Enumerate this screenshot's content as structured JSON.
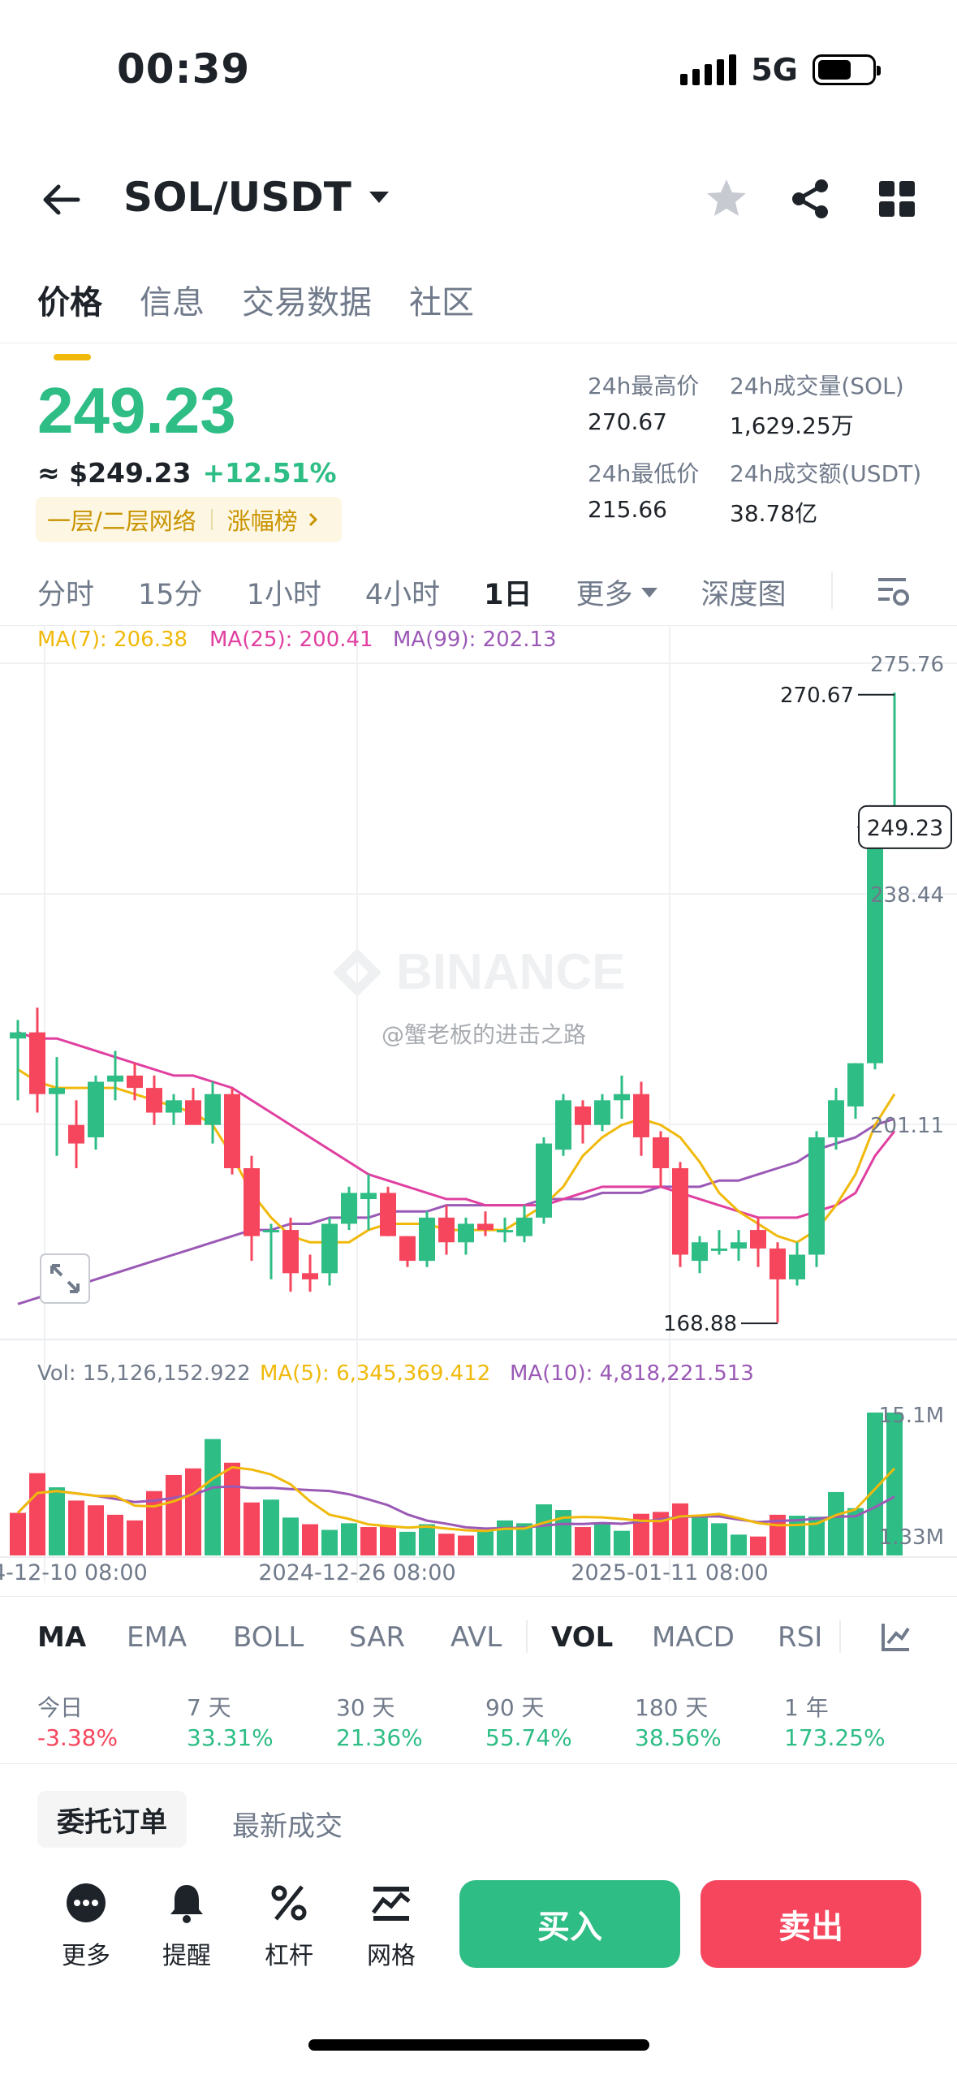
{
  "status": {
    "time": "00:39",
    "network": "5G"
  },
  "header": {
    "pair": "SOL/USDT"
  },
  "tabs": [
    "价格",
    "信息",
    "交易数据",
    "社区"
  ],
  "price": {
    "last": "249.23",
    "usd": "≈ $249.23",
    "change": "+12.51%",
    "tag1": "一层/二层网络",
    "tag2": "涨幅榜"
  },
  "stats": {
    "high_label": "24h最高价",
    "high": "270.67",
    "vol_sol_label": "24h成交量(SOL)",
    "vol_sol": "1,629.25万",
    "low_label": "24h最低价",
    "low": "215.66",
    "vol_usdt_label": "24h成交额(USDT)",
    "vol_usdt": "38.78亿"
  },
  "intervals": [
    "分时",
    "15分",
    "1小时",
    "4小时",
    "1日",
    "更多",
    "深度图"
  ],
  "chart_data": {
    "type": "candlestick",
    "ma_legend": {
      "ma7": "MA(7): 206.38",
      "ma25": "MA(25): 200.41",
      "ma99": "MA(99): 202.13"
    },
    "price_axis": [
      "275.76",
      "238.44",
      "201.11"
    ],
    "current_price": "249.23",
    "high_mark": "270.67",
    "low_mark": "168.88",
    "watermark": "BINANCE",
    "credit": "@蟹老板的进击之路",
    "vol_legend": {
      "vol": "Vol: 15,126,152.922",
      "ma5": "MA(5): 6,345,369.412",
      "ma10": "MA(10): 4,818,221.513"
    },
    "vol_axis": [
      "15.1M",
      "1.33M"
    ],
    "x_labels": [
      "4-12-10 08:00",
      "2024-12-26 08:00",
      "2025-01-11 08:00"
    ],
    "price_range": [
      166,
      278
    ],
    "candles": [
      {
        "o": 215,
        "h": 218,
        "l": 205,
        "c": 216
      },
      {
        "o": 216,
        "h": 220,
        "l": 203,
        "c": 206
      },
      {
        "o": 206,
        "h": 212,
        "l": 196,
        "c": 207
      },
      {
        "o": 201,
        "h": 205,
        "l": 194,
        "c": 198
      },
      {
        "o": 199,
        "h": 209,
        "l": 197,
        "c": 208
      },
      {
        "o": 208,
        "h": 213,
        "l": 205,
        "c": 209
      },
      {
        "o": 209,
        "h": 211,
        "l": 205,
        "c": 207
      },
      {
        "o": 207,
        "h": 209,
        "l": 201,
        "c": 203
      },
      {
        "o": 203,
        "h": 206,
        "l": 201,
        "c": 205
      },
      {
        "o": 205,
        "h": 207,
        "l": 202,
        "c": 201
      },
      {
        "o": 201,
        "h": 208,
        "l": 198,
        "c": 206
      },
      {
        "o": 206,
        "h": 207,
        "l": 193,
        "c": 194
      },
      {
        "o": 194,
        "h": 196,
        "l": 179,
        "c": 183
      },
      {
        "o": 184,
        "h": 185,
        "l": 176,
        "c": 184
      },
      {
        "o": 184,
        "h": 186,
        "l": 174,
        "c": 177
      },
      {
        "o": 177,
        "h": 180,
        "l": 174,
        "c": 176
      },
      {
        "o": 177,
        "h": 186,
        "l": 175,
        "c": 185
      },
      {
        "o": 185,
        "h": 191,
        "l": 184,
        "c": 190
      },
      {
        "o": 189,
        "h": 193,
        "l": 184,
        "c": 190
      },
      {
        "o": 190,
        "h": 191,
        "l": 183,
        "c": 183
      },
      {
        "o": 183,
        "h": 183,
        "l": 178,
        "c": 179
      },
      {
        "o": 179,
        "h": 187,
        "l": 178,
        "c": 186
      },
      {
        "o": 186,
        "h": 188,
        "l": 180,
        "c": 182
      },
      {
        "o": 182,
        "h": 186,
        "l": 180,
        "c": 185
      },
      {
        "o": 185,
        "h": 187,
        "l": 183,
        "c": 184
      },
      {
        "o": 184,
        "h": 186,
        "l": 182,
        "c": 184
      },
      {
        "o": 183,
        "h": 188,
        "l": 182,
        "c": 186
      },
      {
        "o": 186,
        "h": 199,
        "l": 185,
        "c": 198
      },
      {
        "o": 197,
        "h": 206,
        "l": 196,
        "c": 205
      },
      {
        "o": 204,
        "h": 205,
        "l": 198,
        "c": 201
      },
      {
        "o": 201,
        "h": 206,
        "l": 200,
        "c": 205
      },
      {
        "o": 205,
        "h": 209,
        "l": 202,
        "c": 206
      },
      {
        "o": 206,
        "h": 208,
        "l": 196,
        "c": 199
      },
      {
        "o": 199,
        "h": 200,
        "l": 191,
        "c": 194
      },
      {
        "o": 194,
        "h": 195,
        "l": 178,
        "c": 180
      },
      {
        "o": 179,
        "h": 183,
        "l": 177,
        "c": 182
      },
      {
        "o": 181,
        "h": 184,
        "l": 180,
        "c": 181
      },
      {
        "o": 181,
        "h": 184,
        "l": 179,
        "c": 182
      },
      {
        "o": 184,
        "h": 186,
        "l": 178,
        "c": 181
      },
      {
        "o": 181,
        "h": 182,
        "l": 169,
        "c": 176
      },
      {
        "o": 176,
        "h": 182,
        "l": 175,
        "c": 180
      },
      {
        "o": 180,
        "h": 200,
        "l": 178,
        "c": 199
      },
      {
        "o": 199,
        "h": 207,
        "l": 197,
        "c": 205
      },
      {
        "o": 204,
        "h": 211,
        "l": 202,
        "c": 211
      },
      {
        "o": 211,
        "h": 249,
        "l": 210,
        "c": 249
      },
      {
        "o": 249,
        "h": 271,
        "l": 248,
        "c": 249
      }
    ],
    "volumes": [
      4.5,
      8.7,
      7.2,
      5.8,
      5.3,
      4.3,
      3.7,
      6.8,
      8.5,
      9.2,
      12.3,
      9.8,
      5.6,
      5.9,
      4.0,
      3.3,
      2.7,
      3.4,
      3.0,
      3.1,
      2.5,
      3.3,
      2.3,
      2.1,
      2.7,
      3.7,
      3.4,
      5.4,
      4.8,
      3.0,
      3.5,
      2.6,
      4.4,
      4.6,
      5.5,
      4.0,
      3.4,
      2.2,
      2.0,
      4.3,
      4.2,
      4.1,
      6.7,
      5.0,
      15.1,
      15.1
    ],
    "vol_colors": [
      "r",
      "r",
      "g",
      "r",
      "r",
      "r",
      "r",
      "r",
      "r",
      "r",
      "g",
      "r",
      "r",
      "g",
      "g",
      "r",
      "g",
      "g",
      "r",
      "r",
      "g",
      "g",
      "r",
      "r",
      "g",
      "g",
      "g",
      "g",
      "g",
      "r",
      "g",
      "g",
      "r",
      "r",
      "r",
      "g",
      "g",
      "g",
      "r",
      "r",
      "g",
      "g",
      "g",
      "g",
      "g",
      "g"
    ],
    "ma7": [
      210,
      208,
      207,
      207,
      207,
      207,
      206,
      205,
      204,
      203,
      201,
      196,
      190,
      186,
      183,
      182,
      182,
      182,
      184,
      185,
      185,
      185,
      184,
      184,
      184,
      184,
      186,
      188,
      191,
      196,
      199,
      201,
      202,
      201,
      199,
      195,
      190,
      187,
      185,
      183,
      182,
      184,
      188,
      193,
      201,
      206
    ],
    "ma25": [
      216,
      215,
      215,
      214,
      213,
      212,
      211,
      210,
      209,
      209,
      208,
      207,
      205,
      203,
      201,
      199,
      197,
      195,
      193,
      192,
      191,
      190,
      189,
      189,
      188,
      188,
      188,
      188,
      189,
      190,
      191,
      191,
      191,
      191,
      190,
      189,
      188,
      187,
      186,
      186,
      186,
      187,
      188,
      190,
      196,
      200
    ],
    "ma99": [
      172,
      173,
      174,
      175,
      176,
      177,
      178,
      179,
      180,
      181,
      182,
      183,
      184,
      184,
      185,
      185,
      186,
      186,
      186,
      187,
      187,
      187,
      188,
      188,
      188,
      188,
      188,
      189,
      189,
      189,
      190,
      190,
      190,
      191,
      191,
      191,
      192,
      192,
      193,
      194,
      195,
      197,
      198,
      199,
      201,
      202
    ]
  },
  "indicators": [
    "MA",
    "EMA",
    "BOLL",
    "SAR",
    "AVL",
    "VOL",
    "MACD",
    "RSI"
  ],
  "performance": [
    {
      "label": "今日",
      "value": "-3.38%"
    },
    {
      "label": "7 天",
      "value": "33.31%"
    },
    {
      "label": "30 天",
      "value": "21.36%"
    },
    {
      "label": "90 天",
      "value": "55.74%"
    },
    {
      "label": "180 天",
      "value": "38.56%"
    },
    {
      "label": "1 年",
      "value": "173.25%"
    }
  ],
  "bottom": {
    "order_tab": "委托订单",
    "latest_tab": "最新成交",
    "tools": [
      "更多",
      "提醒",
      "杠杆",
      "网格"
    ],
    "buy": "买入",
    "sell": "卖出"
  },
  "colors": {
    "up": "#2ebd85",
    "down": "#f6465d",
    "ma7": "#f0b90b",
    "ma25": "#e040a0",
    "ma99": "#9b59b6",
    "accent": "#f0b90b"
  }
}
